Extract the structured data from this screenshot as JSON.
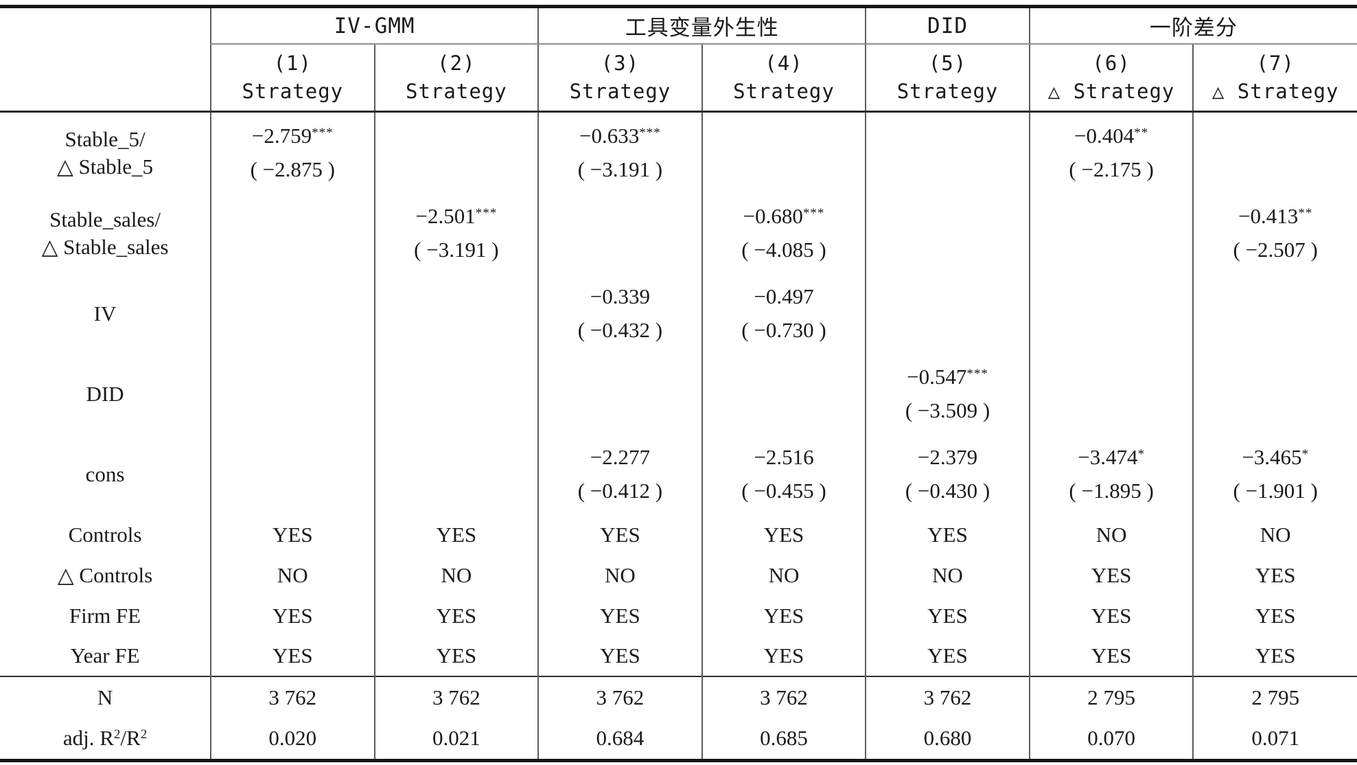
{
  "palette": {
    "background": "#ffffff",
    "text": "#1a1a1a",
    "thick_rule": "#151515",
    "thin_rule": "#2a2a2a",
    "grid_line": "#5c5c5c",
    "group_underline": "#8d8d8d"
  },
  "table": {
    "groups": [
      {
        "label": "IV-GMM",
        "span": 2
      },
      {
        "label": "工具变量外生性",
        "span": 2
      },
      {
        "label": "DID",
        "span": 1
      },
      {
        "label": "一阶差分",
        "span": 2
      }
    ],
    "columns": [
      {
        "number": "(1)",
        "dep": "Strategy"
      },
      {
        "number": "(2)",
        "dep": "Strategy"
      },
      {
        "number": "(3)",
        "dep": "Strategy"
      },
      {
        "number": "(4)",
        "dep": "Strategy"
      },
      {
        "number": "(5)",
        "dep": "Strategy"
      },
      {
        "number": "(6)",
        "dep": "△ Strategy"
      },
      {
        "number": "(7)",
        "dep": "△ Strategy"
      }
    ],
    "coef_rows": [
      {
        "label_lines": [
          "Stable_5/",
          "△ Stable_5"
        ],
        "cells": [
          {
            "value": "−2.759",
            "stars": "***",
            "t": "( −2.875 )"
          },
          null,
          {
            "value": "−0.633",
            "stars": "***",
            "t": "( −3.191 )"
          },
          null,
          null,
          {
            "value": "−0.404",
            "stars": "**",
            "t": "( −2.175 )"
          },
          null
        ]
      },
      {
        "label_lines": [
          "Stable_sales/",
          "△ Stable_sales"
        ],
        "cells": [
          null,
          {
            "value": "−2.501",
            "stars": "***",
            "t": "( −3.191 )"
          },
          null,
          {
            "value": "−0.680",
            "stars": "***",
            "t": "( −4.085 )"
          },
          null,
          null,
          {
            "value": "−0.413",
            "stars": "**",
            "t": "( −2.507 )"
          }
        ]
      },
      {
        "label_lines": [
          "IV"
        ],
        "cells": [
          null,
          null,
          {
            "value": "−0.339",
            "stars": "",
            "t": "( −0.432 )"
          },
          {
            "value": "−0.497",
            "stars": "",
            "t": "( −0.730 )"
          },
          null,
          null,
          null
        ]
      },
      {
        "label_lines": [
          "DID"
        ],
        "cells": [
          null,
          null,
          null,
          null,
          {
            "value": "−0.547",
            "stars": "***",
            "t": "( −3.509 )"
          },
          null,
          null
        ]
      },
      {
        "label_lines": [
          "cons"
        ],
        "cells": [
          null,
          null,
          {
            "value": "−2.277",
            "stars": "",
            "t": "( −0.412 )"
          },
          {
            "value": "−2.516",
            "stars": "",
            "t": "( −0.455 )"
          },
          {
            "value": "−2.379",
            "stars": "",
            "t": "( −0.430 )"
          },
          {
            "value": "−3.474",
            "stars": "*",
            "t": "( −1.895 )"
          },
          {
            "value": "−3.465",
            "stars": "*",
            "t": "( −1.901 )"
          }
        ]
      }
    ],
    "info_rows": [
      {
        "label": "Controls",
        "values": [
          "YES",
          "YES",
          "YES",
          "YES",
          "YES",
          "NO",
          "NO"
        ]
      },
      {
        "label": "△ Controls",
        "values": [
          "NO",
          "NO",
          "NO",
          "NO",
          "NO",
          "YES",
          "YES"
        ]
      },
      {
        "label": "Firm FE",
        "values": [
          "YES",
          "YES",
          "YES",
          "YES",
          "YES",
          "YES",
          "YES"
        ]
      },
      {
        "label": "Year FE",
        "values": [
          "YES",
          "YES",
          "YES",
          "YES",
          "YES",
          "YES",
          "YES"
        ]
      }
    ],
    "stat_rows": [
      {
        "label_parts": [
          {
            "text": "N",
            "sup": false
          }
        ],
        "values": [
          "3 762",
          "3 762",
          "3 762",
          "3 762",
          "3 762",
          "2 795",
          "2 795"
        ]
      },
      {
        "label_parts": [
          {
            "text": "adj. R",
            "sup": false
          },
          {
            "text": "2",
            "sup": true
          },
          {
            "text": "/R",
            "sup": false
          },
          {
            "text": "2",
            "sup": true
          }
        ],
        "values": [
          "0.020",
          "0.021",
          "0.684",
          "0.685",
          "0.680",
          "0.070",
          "0.071"
        ]
      }
    ]
  }
}
